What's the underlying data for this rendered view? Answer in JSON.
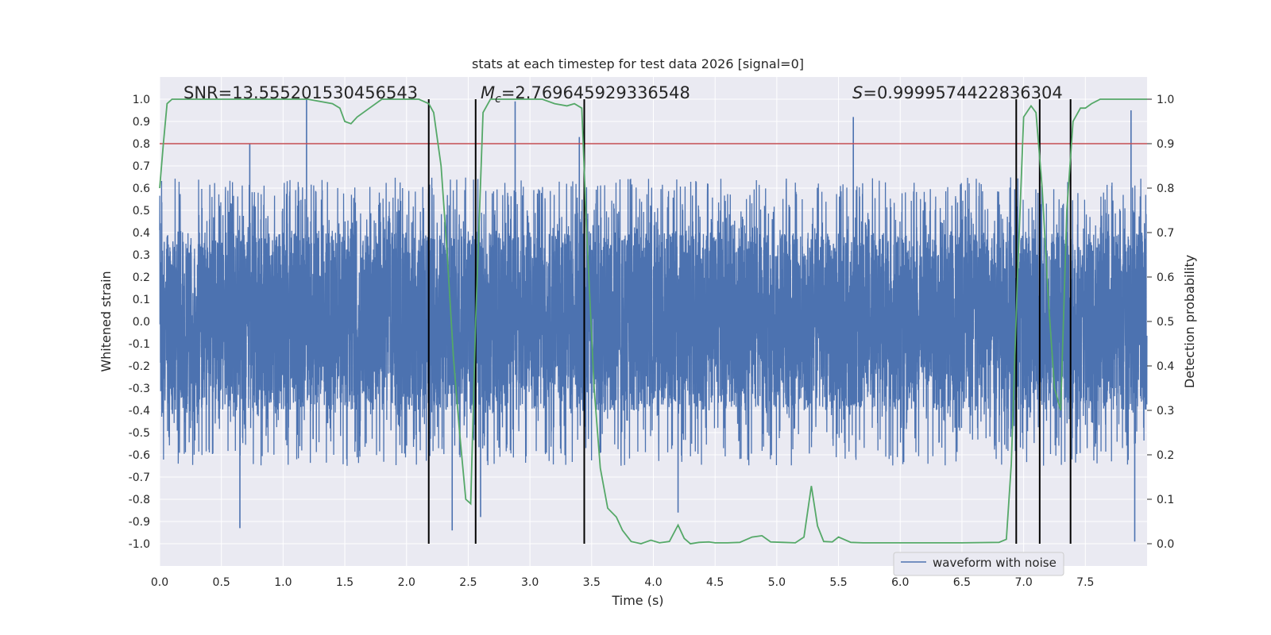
{
  "chart_data": {
    "type": "line",
    "title": "stats at each timestep for test data 2026 [signal=0]",
    "xlabel": "Time (s)",
    "ylabel": "Whitened strain",
    "y2label": "Detection probability",
    "xlim": [
      0.0,
      8.0
    ],
    "ylim": [
      -1.1,
      1.1
    ],
    "y2lim": [
      -0.05,
      1.05
    ],
    "xticks": [
      "0.0",
      "0.5",
      "1.0",
      "1.5",
      "2.0",
      "2.5",
      "3.0",
      "3.5",
      "4.0",
      "4.5",
      "5.0",
      "5.5",
      "6.0",
      "6.5",
      "7.0",
      "7.5"
    ],
    "yticks": [
      "1.0",
      "0.9",
      "0.8",
      "0.7",
      "0.6",
      "0.5",
      "0.4",
      "0.3",
      "0.2",
      "0.1",
      "0.0",
      "-0.1",
      "-0.2",
      "-0.3",
      "-0.4",
      "-0.5",
      "-0.6",
      "-0.7",
      "-0.8",
      "-0.9",
      "-1.0"
    ],
    "y2ticks": [
      "0.0",
      "0.1",
      "0.2",
      "0.3",
      "0.4",
      "0.5",
      "0.6",
      "0.7",
      "0.8",
      "0.9",
      "1.0"
    ],
    "grid": true,
    "legend": {
      "entries": [
        "waveform with noise"
      ],
      "placement": "lower-right"
    },
    "annotations": {
      "snr": "SNR=13.555201530456543",
      "mc_symbol": "M",
      "mc_sub": "c",
      "mc_value": "=2.769645929336548",
      "s_symbol": "S",
      "s_value": "=0.9999574422836304"
    },
    "threshold": {
      "value": 0.9,
      "axis": "right",
      "color": "#c44e52"
    },
    "vertical_lines": [
      2.18,
      2.56,
      3.44,
      6.94,
      7.13,
      7.38
    ],
    "series": [
      {
        "name": "waveform with noise",
        "axis": "left",
        "color": "#4c72b0",
        "kind": "noise",
        "sample_rate_hz": 1024,
        "core_range": [
          -0.4,
          0.4
        ],
        "typical_peak": 0.65,
        "notable_peaks": [
          {
            "t": 0.65,
            "v": -0.93
          },
          {
            "t": 0.73,
            "v": 0.8
          },
          {
            "t": 1.19,
            "v": 1.0
          },
          {
            "t": 2.37,
            "v": -0.94
          },
          {
            "t": 2.6,
            "v": -0.88
          },
          {
            "t": 2.88,
            "v": 0.99
          },
          {
            "t": 3.4,
            "v": 0.83
          },
          {
            "t": 4.2,
            "v": -0.86
          },
          {
            "t": 5.62,
            "v": 0.92
          },
          {
            "t": 7.87,
            "v": 0.95
          },
          {
            "t": 7.9,
            "v": -0.99
          }
        ]
      },
      {
        "name": "",
        "axis": "right",
        "color": "#55a868",
        "kind": "line",
        "x": [
          0.0,
          0.03,
          0.06,
          0.1,
          0.2,
          0.4,
          0.6,
          0.8,
          1.0,
          1.2,
          1.4,
          1.46,
          1.5,
          1.55,
          1.6,
          1.7,
          1.8,
          1.95,
          2.1,
          2.18,
          2.22,
          2.28,
          2.33,
          2.38,
          2.43,
          2.48,
          2.52,
          2.56,
          2.62,
          2.68,
          2.75,
          2.9,
          3.0,
          3.1,
          3.2,
          3.3,
          3.36,
          3.42,
          3.46,
          3.52,
          3.57,
          3.63,
          3.7,
          3.75,
          3.82,
          3.9,
          3.98,
          4.05,
          4.13,
          4.2,
          4.25,
          4.3,
          4.37,
          4.45,
          4.5,
          4.6,
          4.7,
          4.8,
          4.88,
          4.95,
          5.05,
          5.15,
          5.22,
          5.28,
          5.33,
          5.38,
          5.45,
          5.5,
          5.6,
          5.7,
          6.0,
          6.5,
          6.8,
          6.86,
          6.9,
          6.95,
          7.0,
          7.06,
          7.1,
          7.15,
          7.2,
          7.25,
          7.3,
          7.35,
          7.4,
          7.46,
          7.5,
          7.55,
          7.62,
          7.7,
          7.8,
          7.9,
          8.0
        ],
        "y": [
          0.8,
          0.9,
          0.99,
          1.0,
          1.0,
          1.0,
          1.0,
          1.0,
          1.0,
          1.0,
          0.99,
          0.98,
          0.95,
          0.945,
          0.96,
          0.98,
          1.0,
          1.0,
          1.0,
          0.99,
          0.97,
          0.85,
          0.65,
          0.42,
          0.25,
          0.1,
          0.09,
          0.5,
          0.97,
          1.0,
          1.0,
          1.0,
          1.0,
          1.0,
          0.99,
          0.985,
          0.99,
          0.98,
          0.7,
          0.35,
          0.17,
          0.08,
          0.06,
          0.03,
          0.005,
          0.0,
          0.008,
          0.002,
          0.005,
          0.042,
          0.012,
          0.0,
          0.003,
          0.004,
          0.002,
          0.002,
          0.003,
          0.015,
          0.018,
          0.004,
          0.003,
          0.002,
          0.015,
          0.13,
          0.04,
          0.005,
          0.004,
          0.015,
          0.003,
          0.002,
          0.002,
          0.002,
          0.003,
          0.01,
          0.18,
          0.6,
          0.96,
          0.985,
          0.97,
          0.8,
          0.55,
          0.35,
          0.3,
          0.75,
          0.95,
          0.98,
          0.98,
          0.99,
          1.0,
          1.0,
          1.0,
          1.0,
          1.0
        ]
      }
    ]
  }
}
